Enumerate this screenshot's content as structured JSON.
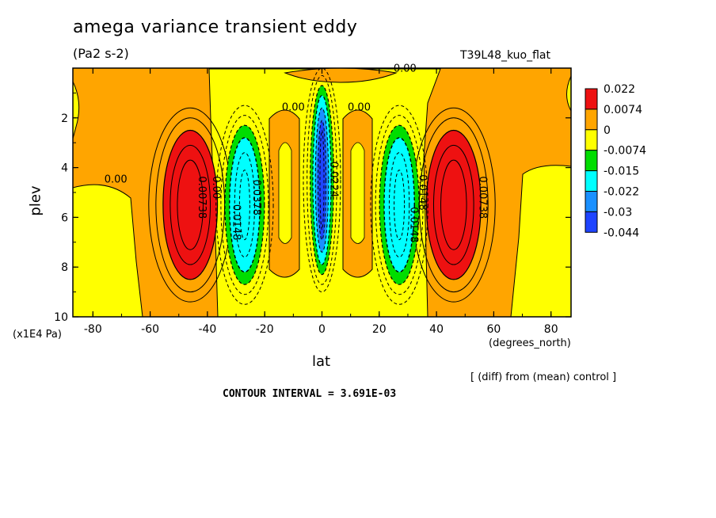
{
  "chart_data": {
    "type": "heatmap",
    "title": "amega variance transient eddy",
    "units": "(Pa2 s-2)",
    "run_label": "T39L48_kuo_flat",
    "xlabel": "lat",
    "x_units": "(degrees_north)",
    "ylabel": "plev",
    "y_scale_label": "(x1E4 Pa)",
    "xlim": [
      -87,
      87
    ],
    "ylim": [
      0,
      10
    ],
    "y_inverted": true,
    "x_ticks": [
      "-80",
      "-60",
      "-40",
      "-20",
      "0",
      "20",
      "40",
      "60",
      "80"
    ],
    "y_ticks": [
      "2",
      "4",
      "6",
      "8",
      "10"
    ],
    "colorbar": {
      "levels": [
        "0.022",
        "0.0074",
        "0",
        "-0.0074",
        "-0.015",
        "-0.022",
        "-0.03",
        "-0.044"
      ],
      "colors": [
        "#ee1111",
        "#ffa500",
        "#ffff00",
        "#00dd00",
        "#00ffff",
        "#1a90ff",
        "#1e44ff"
      ]
    },
    "contour_labels": [
      "0.00",
      "0.00",
      "0.00",
      "0.00",
      "0.00",
      "0.00738",
      "0.00738",
      "0.0148",
      "0.0148",
      "0.0148",
      "0.0378",
      "-0.0224"
    ],
    "note": "[ (diff) from (mean) control ]",
    "contour_interval": "CONTOUR INTERVAL = 3.691E-03",
    "features": [
      {
        "name": "positive",
        "lat": -46,
        "plev": 5.5,
        "value": 0.03
      },
      {
        "name": "positive",
        "lat": 46,
        "plev": 5.5,
        "value": 0.03
      },
      {
        "name": "negative",
        "lat": -27,
        "plev": 5.5,
        "value": -0.025
      },
      {
        "name": "negative",
        "lat": 27,
        "plev": 5.5,
        "value": -0.025
      },
      {
        "name": "negative",
        "lat": 0,
        "plev": 4.5,
        "value": -0.044
      }
    ]
  }
}
